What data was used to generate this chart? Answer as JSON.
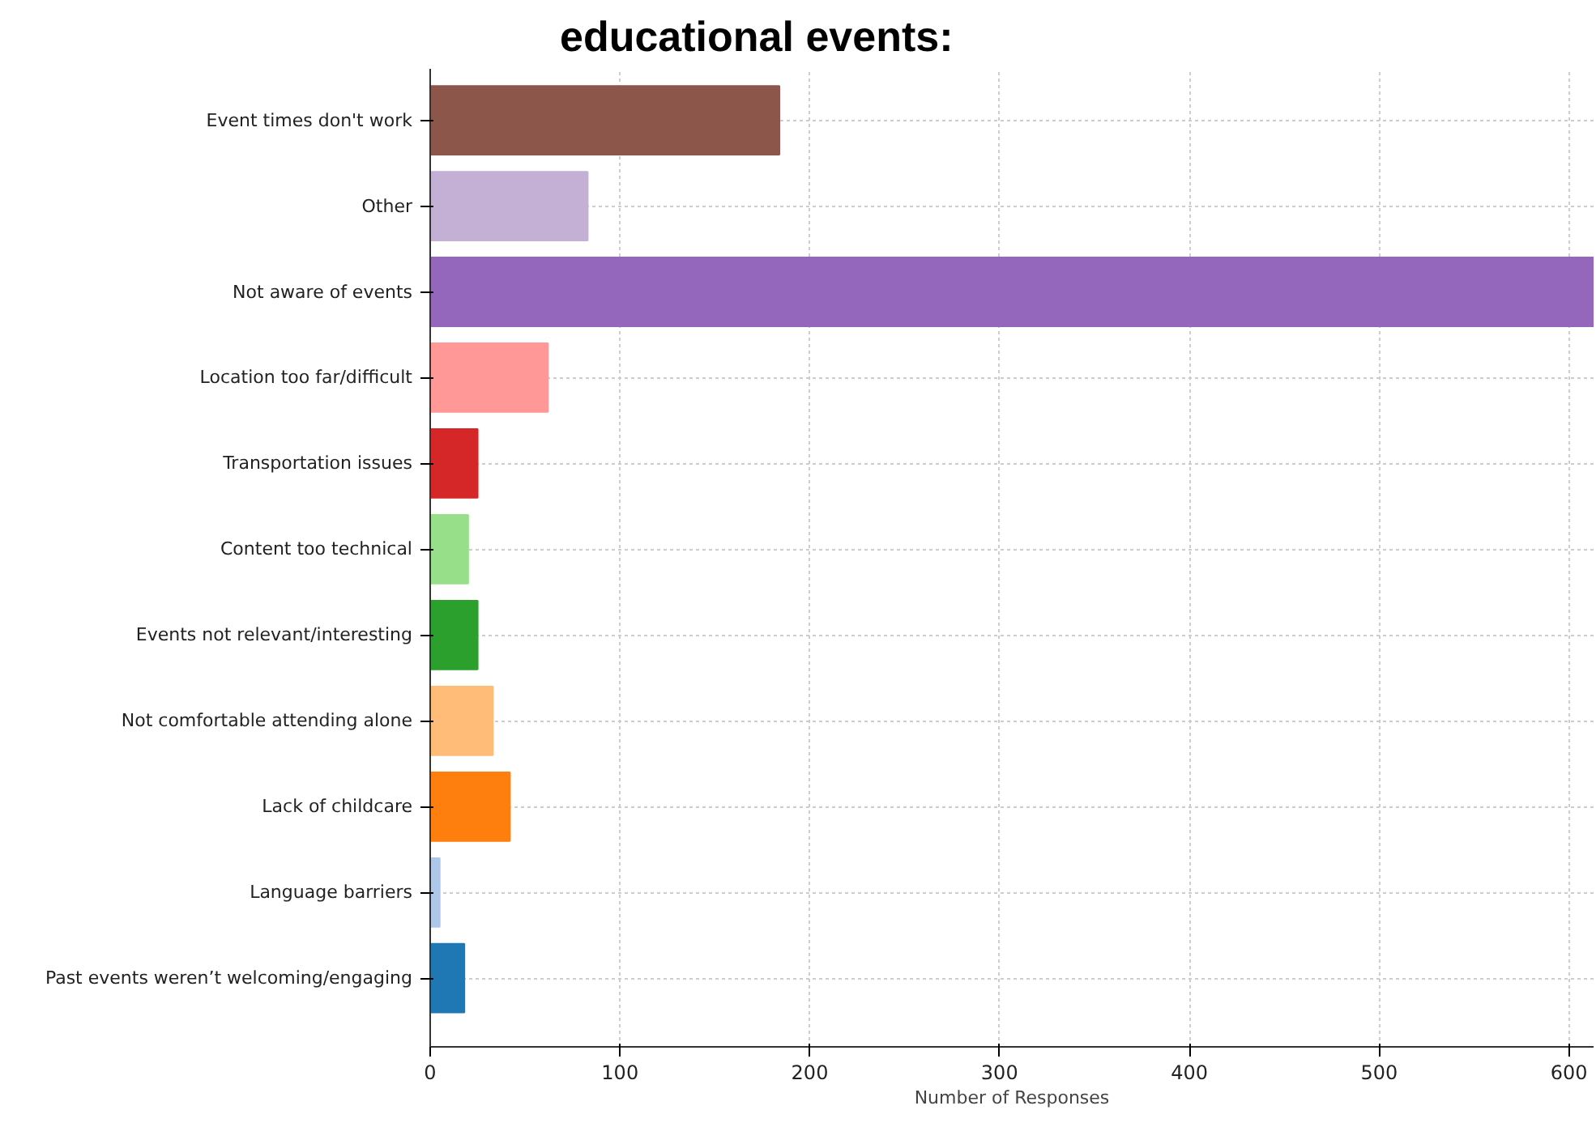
{
  "chart_data": {
    "type": "bar",
    "orientation": "horizontal",
    "title": "educational events:",
    "xlabel": "Number of Responses",
    "categories": [
      "Event times don't work",
      "Other",
      "Not aware of events",
      "Location too far/difficult",
      "Transportation issues",
      "Content too technical",
      "Events not relevant/interesting",
      "Not comfortable attending alone",
      "Lack of childcare",
      "Language barriers",
      "Past events weren’t welcoming/engaging"
    ],
    "values": [
      184,
      83,
      613,
      62,
      25,
      20,
      25,
      33,
      42,
      5,
      18
    ],
    "colors": [
      "#8c564b",
      "#c5b0d5",
      "#9467bd",
      "#ff9896",
      "#d62728",
      "#98df8a",
      "#2ca02c",
      "#ffbb78",
      "#ff7f0e",
      "#aec7e8",
      "#1f77b4"
    ],
    "xlim": [
      0,
      613
    ],
    "xticks": [
      0,
      100,
      200,
      300,
      400,
      500,
      600
    ],
    "grid": true
  }
}
